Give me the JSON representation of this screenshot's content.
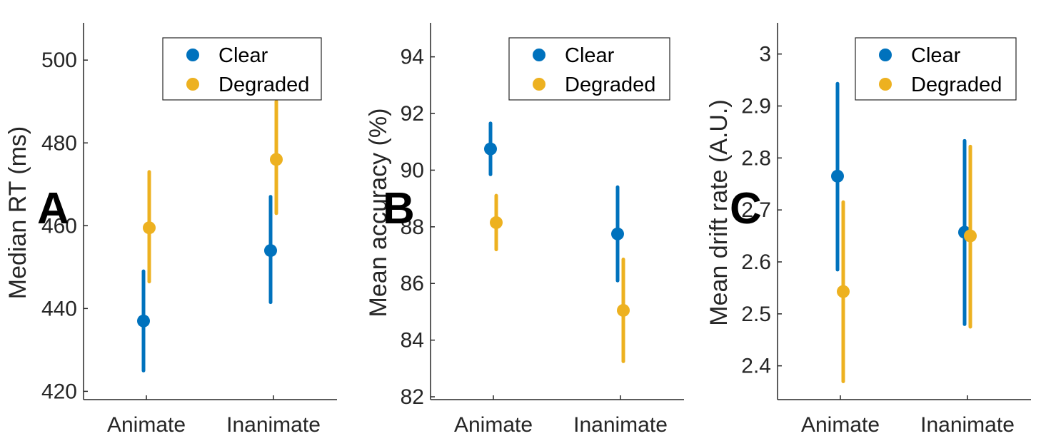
{
  "figure": {
    "colors": {
      "Clear": "#0072bd",
      "Degraded": "#edb120",
      "axis": "#262626"
    }
  },
  "chart_data": [
    {
      "type": "scatter",
      "panel_letter": "A",
      "ylabel": "Median RT (ms)",
      "xlabel": "",
      "categories": [
        "Animate",
        "Inanimate"
      ],
      "ylim": [
        418,
        509
      ],
      "yticks": [
        420,
        440,
        460,
        480,
        500
      ],
      "legend": {
        "position": "top-right",
        "entries": [
          "Clear",
          "Degraded"
        ]
      },
      "series": [
        {
          "name": "Clear",
          "values": [
            437,
            454
          ],
          "lower": [
            425,
            441.5
          ],
          "upper": [
            449,
            467
          ]
        },
        {
          "name": "Degraded",
          "values": [
            459.5,
            476
          ],
          "lower": [
            446.5,
            463
          ],
          "upper": [
            473,
            490
          ]
        }
      ]
    },
    {
      "type": "scatter",
      "panel_letter": "B",
      "ylabel": "Mean accuracy (%)",
      "xlabel": "",
      "categories": [
        "Animate",
        "Inanimate"
      ],
      "ylim": [
        81.9,
        95.2
      ],
      "yticks": [
        82,
        84,
        86,
        88,
        90,
        92,
        94
      ],
      "legend": {
        "position": "top-right",
        "entries": [
          "Clear",
          "Degraded"
        ]
      },
      "series": [
        {
          "name": "Clear",
          "values": [
            90.75,
            87.75
          ],
          "lower": [
            89.85,
            86.1
          ],
          "upper": [
            91.65,
            89.4
          ]
        },
        {
          "name": "Degraded",
          "values": [
            88.15,
            85.05
          ],
          "lower": [
            87.2,
            83.25
          ],
          "upper": [
            89.1,
            86.85
          ]
        }
      ]
    },
    {
      "type": "scatter",
      "panel_letter": "C",
      "ylabel": "Mean drift rate (A.U.)",
      "xlabel": "",
      "categories": [
        "Animate",
        "Inanimate"
      ],
      "ylim": [
        2.335,
        3.06
      ],
      "yticks": [
        2.4,
        2.5,
        2.6,
        2.7,
        2.8,
        2.9,
        3
      ],
      "yticklabels": [
        "2.4",
        "2.5",
        "2.6",
        "2.7",
        "2.8",
        "2.9",
        "3"
      ],
      "legend": {
        "position": "top-right",
        "entries": [
          "Clear",
          "Degraded"
        ]
      },
      "series": [
        {
          "name": "Clear",
          "values": [
            2.765,
            2.657
          ],
          "lower": [
            2.585,
            2.48
          ],
          "upper": [
            2.943,
            2.833
          ]
        },
        {
          "name": "Degraded",
          "values": [
            2.543,
            2.65
          ],
          "lower": [
            2.37,
            2.475
          ],
          "upper": [
            2.715,
            2.822
          ]
        }
      ]
    }
  ]
}
